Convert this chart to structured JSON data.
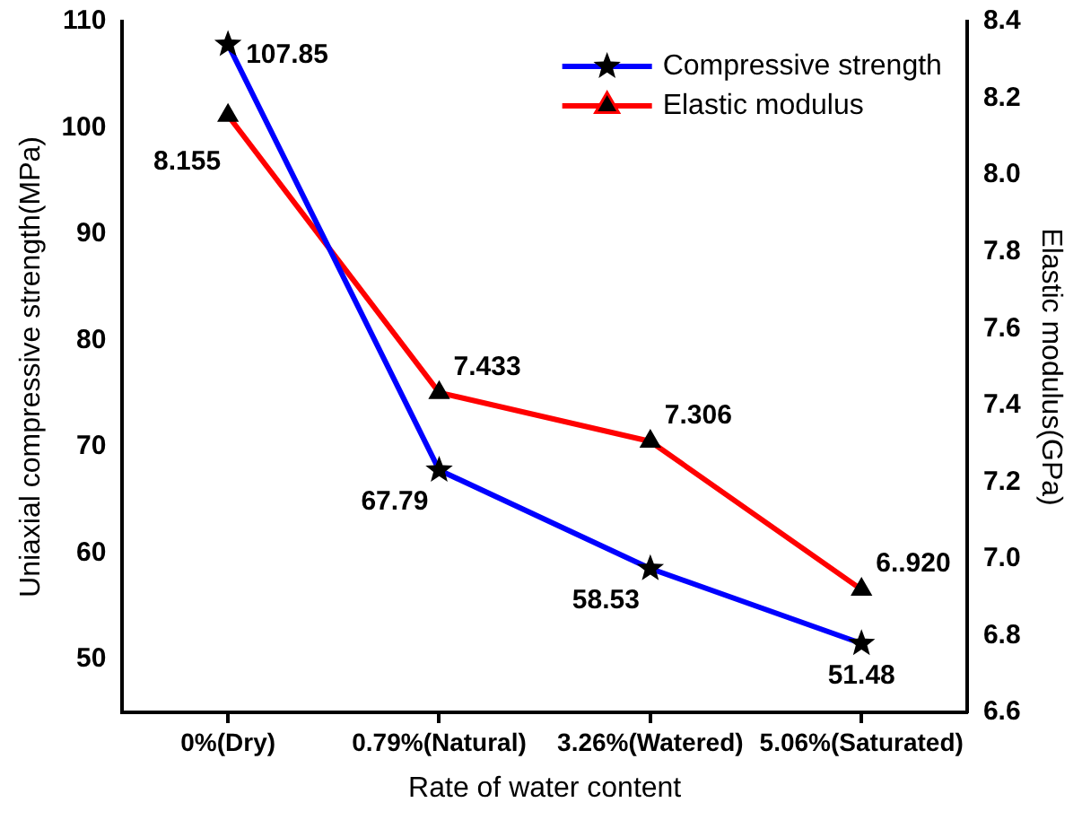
{
  "chart_data": {
    "type": "line",
    "xlabel": "Rate of water content",
    "ylabel": "Uniaxial compressive strength(MPa)",
    "y2label": "Elastic modulus(GPa)",
    "categories": [
      "0%(Dry)",
      "0.79%(Natural)",
      "3.26%(Watered)",
      "5.06%(Saturated)"
    ],
    "series": [
      {
        "name": "Compressive strength",
        "color": "#0000ff",
        "values": [
          107.85,
          67.79,
          58.53,
          51.48
        ],
        "marker": "star",
        "value_labels": [
          "107.85",
          "67.79",
          "58.53",
          "51.48"
        ]
      },
      {
        "name": "Elastic modulus",
        "color": "#ff0000",
        "values": [
          8.155,
          7.433,
          7.306,
          6.92
        ],
        "axis": "y2",
        "marker": "triangle",
        "value_labels": [
          "8.155",
          "7.433",
          "7.306",
          "6..920"
        ]
      }
    ],
    "ylim": [
      45,
      110
    ],
    "yticks": [
      50,
      60,
      70,
      80,
      90,
      100,
      110
    ],
    "y2lim": [
      6.6,
      8.4
    ],
    "y2ticks": [
      {
        "value": 6.6,
        "label": "6.6"
      },
      {
        "value": 6.8,
        "label": "6.8"
      },
      {
        "value": 7.0,
        "label": "7.0"
      },
      {
        "value": 7.2,
        "label": "7.2"
      },
      {
        "value": 7.4,
        "label": "7.4"
      },
      {
        "value": 7.6,
        "label": "7.6"
      },
      {
        "value": 7.8,
        "label": "7.8"
      },
      {
        "value": 8.0,
        "label": "8.0"
      },
      {
        "value": 8.2,
        "label": "8.2"
      },
      {
        "value": 8.4,
        "label": "8.4"
      }
    ],
    "grid": false,
    "legend": "top right",
    "line_style": "solid"
  }
}
